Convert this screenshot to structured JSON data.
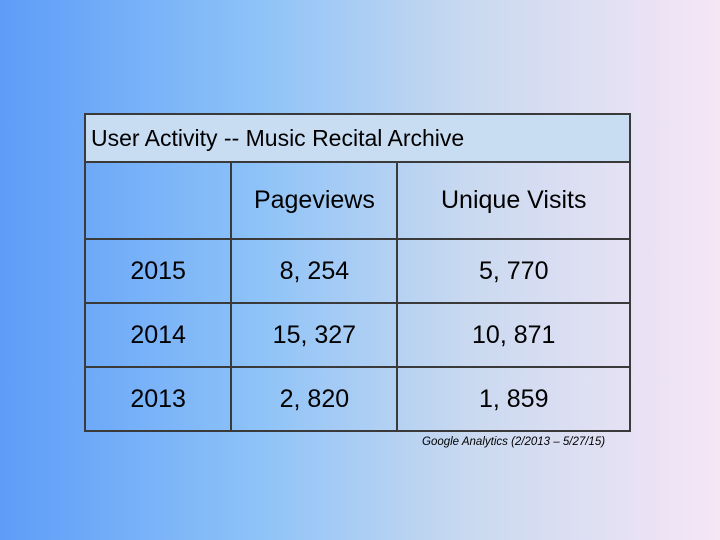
{
  "table": {
    "title": "User Activity --  Music Recital Archive",
    "header": [
      "Pageviews",
      "Unique Visits"
    ],
    "rows": [
      [
        "2015",
        "8, 254",
        "5, 770"
      ],
      [
        "2014",
        "15, 327",
        "10, 871"
      ],
      [
        "2013",
        "2, 820",
        "1, 859"
      ]
    ],
    "footnote": "Google Analytics (2/2013 – 5/27/15)"
  }
}
